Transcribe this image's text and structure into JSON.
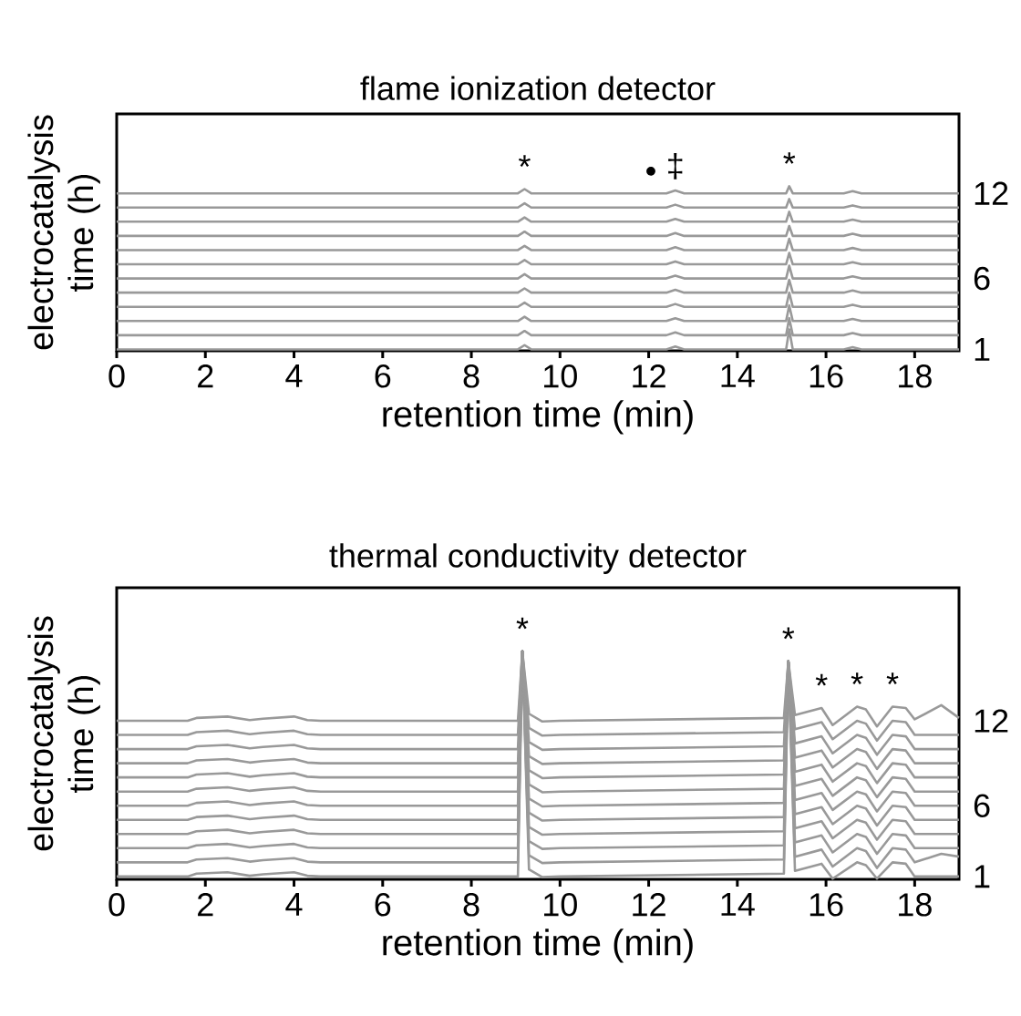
{
  "chart_data": [
    {
      "type": "line",
      "title": "flame ionization detector",
      "xlabel": "retention time (min)",
      "ylabel": "electrocatalysis time (h)",
      "marker": "none",
      "line_style": "solid",
      "xlim": [
        0,
        19
      ],
      "xticks": [
        0,
        2,
        4,
        6,
        8,
        10,
        12,
        14,
        16,
        18
      ],
      "ylim": [
        0.9,
        17.6
      ],
      "yticks": [
        1,
        6,
        12
      ],
      "x": [
        0,
        9.05,
        9.2,
        9.35,
        12.05,
        12.4,
        12.6,
        12.8,
        15.1,
        15.17,
        15.25,
        16.4,
        16.6,
        16.8,
        19
      ],
      "series": [
        {
          "color": "#999999",
          "values": [
            1,
            1,
            1.3,
            1,
            1,
            1,
            1.2,
            1,
            1,
            2.4,
            1,
            1,
            1.15,
            1,
            1
          ]
        },
        {
          "color": "#999999",
          "values": [
            2,
            2,
            2.3,
            2,
            2,
            2,
            2.2,
            2,
            2,
            3.2,
            2,
            2,
            2.15,
            2,
            2
          ]
        },
        {
          "color": "#999999",
          "values": [
            3,
            3,
            3.3,
            3,
            3,
            3,
            3.2,
            3,
            3,
            4.1,
            3,
            3,
            3.15,
            3,
            3
          ]
        },
        {
          "color": "#999999",
          "values": [
            4,
            4,
            4.3,
            4,
            4,
            4,
            4.2,
            4,
            4,
            5,
            4,
            4,
            4.15,
            4,
            4
          ]
        },
        {
          "color": "#999999",
          "values": [
            5,
            5,
            5.3,
            5,
            5,
            5,
            5.2,
            5,
            5,
            5.9,
            5,
            5,
            5.15,
            5,
            5
          ]
        },
        {
          "color": "#999999",
          "values": [
            6,
            6,
            6.3,
            6,
            6,
            6,
            6.2,
            6,
            6,
            6.9,
            6,
            6,
            6.15,
            6,
            6
          ]
        },
        {
          "color": "#999999",
          "values": [
            7,
            7,
            7.3,
            7,
            7,
            7,
            7.2,
            7,
            7,
            7.8,
            7,
            7,
            7.15,
            7,
            7
          ]
        },
        {
          "color": "#999999",
          "values": [
            8,
            8,
            8.3,
            8,
            8,
            8,
            8.2,
            8,
            8,
            8.8,
            8,
            8,
            8.15,
            8,
            8
          ]
        },
        {
          "color": "#999999",
          "values": [
            9,
            9,
            9.3,
            9,
            9,
            9,
            9.2,
            9,
            9,
            9.7,
            9,
            9,
            9.15,
            9,
            9
          ]
        },
        {
          "color": "#999999",
          "values": [
            10,
            10,
            10.3,
            10,
            10,
            10,
            10.2,
            10,
            10,
            10.7,
            10,
            10,
            10.15,
            10,
            10
          ]
        },
        {
          "color": "#999999",
          "values": [
            11,
            11,
            11.3,
            11,
            11,
            11,
            11.2,
            11,
            11,
            11.6,
            11,
            11,
            11.15,
            11,
            11
          ]
        },
        {
          "color": "#999999",
          "values": [
            12,
            12,
            12.3,
            12,
            12,
            12,
            12.2,
            12,
            12,
            12.5,
            12,
            12,
            12.15,
            12,
            12
          ]
        }
      ],
      "annotations": [
        {
          "text": "*",
          "x": 9.2,
          "y": 12.3
        },
        {
          "text": "•",
          "x": 12.05,
          "y": 12
        },
        {
          "text": "‡",
          "x": 12.6,
          "y": 12.2
        },
        {
          "text": "*",
          "x": 15.17,
          "y": 12.5
        }
      ]
    },
    {
      "type": "line",
      "title": "thermal conductivity detector",
      "xlabel": "retention time (min)",
      "ylabel": "electrocatalysis time (h)",
      "marker": "none",
      "line_style": "solid",
      "xlim": [
        0,
        19
      ],
      "xticks": [
        0,
        2,
        4,
        6,
        8,
        10,
        12,
        14,
        16,
        18
      ],
      "ylim": [
        0.8,
        21.4
      ],
      "yticks": [
        1,
        6,
        12
      ],
      "x": [
        0,
        1.6,
        1.8,
        2.5,
        3.0,
        3.3,
        4.0,
        4.3,
        4.6,
        9.05,
        9.15,
        9.3,
        9.6,
        10.0,
        15.05,
        15.15,
        15.3,
        15.9,
        16.15,
        16.7,
        16.9,
        17.15,
        17.5,
        17.8,
        18.0,
        18.6,
        19
      ],
      "series": [
        {
          "color": "#999999",
          "values": [
            1,
            1,
            1.2,
            1.3,
            1.05,
            1.15,
            1.3,
            1.05,
            1,
            1,
            16.9,
            1.5,
            0.95,
            1,
            1.2,
            16.2,
            1.4,
            1.9,
            0.85,
            2,
            1.8,
            0.85,
            2,
            1.9,
            1,
            1,
            1
          ]
        },
        {
          "color": "#999999",
          "values": [
            2,
            2,
            2.2,
            2.3,
            2.05,
            2.15,
            2.3,
            2.05,
            2,
            2,
            16.9,
            2.5,
            1.95,
            2,
            2.2,
            16.2,
            2.4,
            2.9,
            1.7,
            3,
            2.8,
            1.6,
            3,
            2.9,
            2,
            2.6,
            2.4
          ]
        },
        {
          "color": "#999999",
          "values": [
            3,
            3,
            3.2,
            3.3,
            3.05,
            3.15,
            3.3,
            3.05,
            3,
            3,
            16.9,
            3.5,
            2.95,
            3,
            3.2,
            16.2,
            3.4,
            3.9,
            2.7,
            4,
            3.8,
            2.6,
            4,
            3.9,
            3,
            3,
            3
          ]
        },
        {
          "color": "#999999",
          "values": [
            4,
            4,
            4.2,
            4.3,
            4.05,
            4.15,
            4.3,
            4.05,
            4,
            4,
            16.9,
            4.5,
            3.95,
            4,
            4.2,
            16.2,
            4.4,
            4.9,
            3.7,
            5,
            4.8,
            3.6,
            5,
            4.9,
            4,
            4,
            4
          ]
        },
        {
          "color": "#999999",
          "values": [
            5,
            5,
            5.2,
            5.3,
            5.05,
            5.15,
            5.3,
            5.05,
            5,
            5,
            16.9,
            5.5,
            4.95,
            5,
            5.2,
            16.2,
            5.4,
            5.9,
            4.7,
            6,
            5.8,
            4.6,
            6,
            5.9,
            5,
            5,
            5
          ]
        },
        {
          "color": "#999999",
          "values": [
            6,
            6,
            6.2,
            6.3,
            6.05,
            6.15,
            6.3,
            6.05,
            6,
            6,
            16.9,
            6.5,
            5.95,
            6,
            6.2,
            16.2,
            6.4,
            6.9,
            5.7,
            7,
            6.8,
            5.6,
            7,
            6.9,
            6,
            6,
            6
          ]
        },
        {
          "color": "#999999",
          "values": [
            7,
            7,
            7.2,
            7.3,
            7.05,
            7.15,
            7.3,
            7.05,
            7,
            7,
            16.9,
            7.5,
            6.95,
            7,
            7.2,
            16.2,
            7.4,
            7.9,
            6.7,
            8,
            7.8,
            6.6,
            8,
            7.9,
            7,
            7,
            7
          ]
        },
        {
          "color": "#999999",
          "values": [
            8,
            8,
            8.2,
            8.3,
            8.05,
            8.15,
            8.3,
            8.05,
            8,
            8,
            16.9,
            8.5,
            7.95,
            8,
            8.2,
            16.2,
            8.4,
            8.9,
            7.7,
            9,
            8.8,
            7.6,
            9,
            8.9,
            8,
            8,
            8
          ]
        },
        {
          "color": "#999999",
          "values": [
            9,
            9,
            9.2,
            9.3,
            9.05,
            9.15,
            9.3,
            9.05,
            9,
            9,
            16.9,
            9.5,
            8.95,
            9,
            9.2,
            16.2,
            9.4,
            9.9,
            8.7,
            10,
            9.8,
            8.6,
            10,
            9.9,
            9,
            9,
            9
          ]
        },
        {
          "color": "#999999",
          "values": [
            10,
            10,
            10.2,
            10.3,
            10.05,
            10.15,
            10.3,
            10.05,
            10,
            10,
            16.9,
            10.5,
            9.95,
            10,
            10.2,
            16.2,
            10.4,
            10.9,
            9.7,
            11,
            10.8,
            9.6,
            11,
            10.9,
            10,
            10,
            10
          ]
        },
        {
          "color": "#999999",
          "values": [
            11,
            11,
            11.2,
            11.3,
            11.05,
            11.15,
            11.3,
            11.05,
            11,
            11,
            16.9,
            11.5,
            10.95,
            11,
            11.2,
            16.2,
            11.4,
            11.9,
            10.7,
            12,
            11.8,
            10.6,
            12,
            11.9,
            11,
            11,
            11
          ]
        },
        {
          "color": "#999999",
          "values": [
            12,
            12,
            12.2,
            12.3,
            12.05,
            12.15,
            12.3,
            12.05,
            12,
            12,
            16.9,
            12.5,
            11.95,
            12,
            12.2,
            16.2,
            12.4,
            12.9,
            11.7,
            13,
            12.8,
            11.6,
            13,
            12.9,
            12.1,
            13.1,
            12.2
          ]
        }
      ],
      "annotations": [
        {
          "text": "*",
          "x": 9.15,
          "y": 16.9
        },
        {
          "text": "*",
          "x": 15.15,
          "y": 16.2
        },
        {
          "text": "*",
          "x": 15.9,
          "y": 12.9
        },
        {
          "text": "*",
          "x": 16.7,
          "y": 13
        },
        {
          "text": "*",
          "x": 17.5,
          "y": 13
        }
      ]
    }
  ]
}
